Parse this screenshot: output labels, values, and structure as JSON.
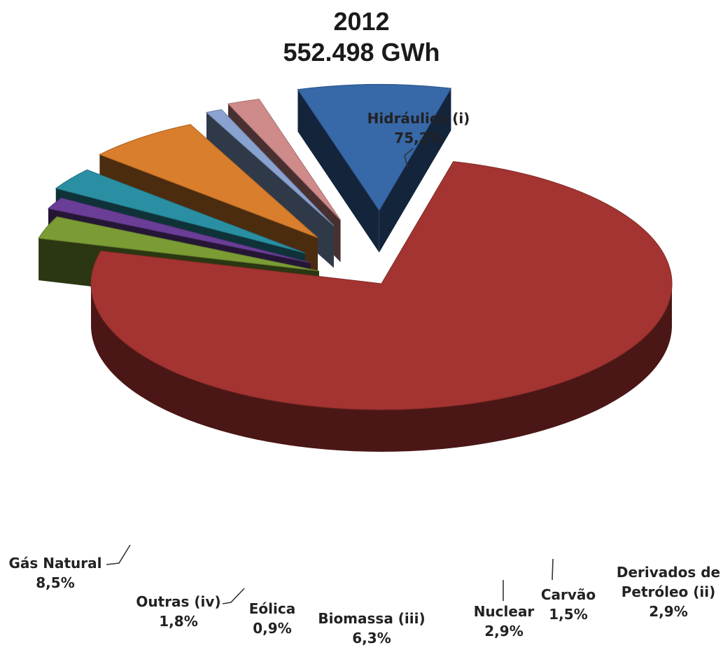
{
  "chart_data": {
    "type": "pie",
    "title": "2012",
    "subtitle": "552.498 GWh",
    "slices": [
      {
        "name": "Hidráulica (i)",
        "value": 75.2,
        "label": "75,2%",
        "color": "#a43431"
      },
      {
        "name": "Derivados de Petróleo (ii)",
        "value": 2.9,
        "label": "2,9%",
        "color": "#7b9b34"
      },
      {
        "name": "Carvão",
        "value": 1.5,
        "label": "1,5%",
        "color": "#6a3e97"
      },
      {
        "name": "Nuclear",
        "value": 2.9,
        "label": "2,9%",
        "color": "#2a8fa3"
      },
      {
        "name": "Biomassa (iii)",
        "value": 6.3,
        "label": "6,3%",
        "color": "#d97e2c"
      },
      {
        "name": "Eólica",
        "value": 0.9,
        "label": "0,9%",
        "color": "#8aa2cf"
      },
      {
        "name": "Outras (iv)",
        "value": 1.8,
        "label": "1,8%",
        "color": "#cf8a8a"
      },
      {
        "name": "Gás Natural",
        "value": 8.5,
        "label": "8,5%",
        "color": "#3768a8"
      }
    ]
  }
}
